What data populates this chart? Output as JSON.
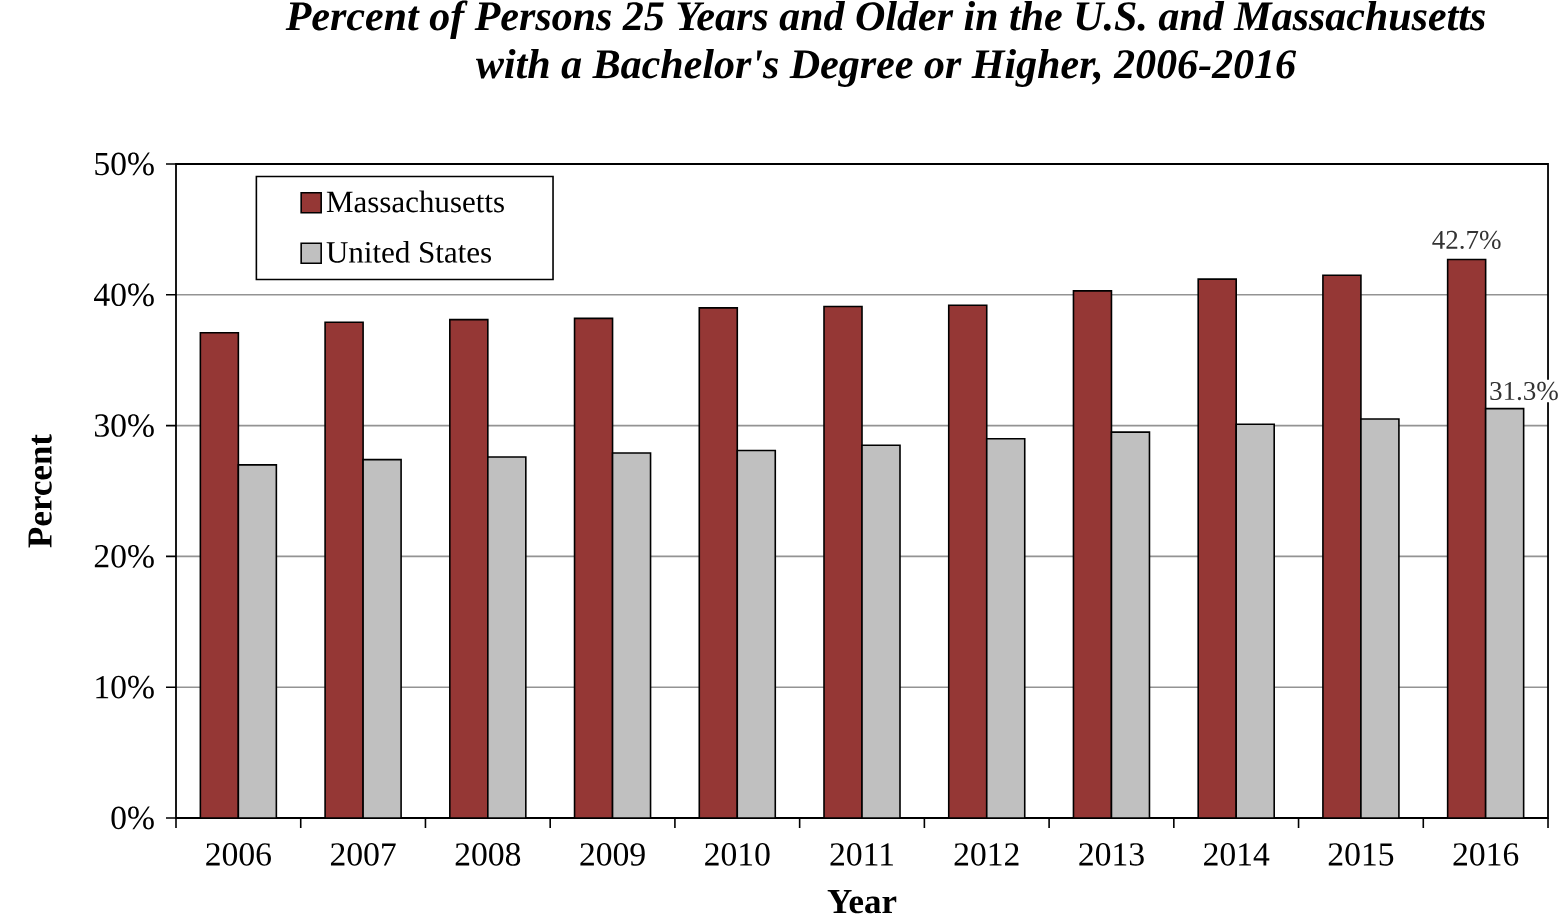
{
  "chart_data": {
    "type": "bar",
    "title": "Percent of Persons 25 Years and Older in the U.S. and Massachusetts with a Bachelor's Degree or Higher, 2006-2016",
    "xlabel": "Year",
    "ylabel": "Percent",
    "categories": [
      "2006",
      "2007",
      "2008",
      "2009",
      "2010",
      "2011",
      "2012",
      "2013",
      "2014",
      "2015",
      "2016"
    ],
    "series": [
      {
        "name": "Massachusetts",
        "color": "#953735",
        "values": [
          37.1,
          37.9,
          38.1,
          38.2,
          39.0,
          39.1,
          39.2,
          40.3,
          41.2,
          41.5,
          42.7
        ],
        "value_labels": [
          null,
          null,
          null,
          null,
          null,
          null,
          null,
          null,
          null,
          null,
          "42.7%"
        ]
      },
      {
        "name": "United States",
        "color": "#c0c0c0",
        "values": [
          27.0,
          27.4,
          27.6,
          27.9,
          28.1,
          28.5,
          29.0,
          29.5,
          30.1,
          30.5,
          31.3
        ],
        "value_labels": [
          null,
          null,
          null,
          null,
          null,
          null,
          null,
          null,
          null,
          null,
          "31.3%"
        ]
      }
    ],
    "ylim": [
      0,
      50
    ],
    "yticks": [
      {
        "value": 0,
        "label": "0%"
      },
      {
        "value": 10,
        "label": "10%"
      },
      {
        "value": 20,
        "label": "20%"
      },
      {
        "value": 30,
        "label": "30%"
      },
      {
        "value": 40,
        "label": "40%"
      },
      {
        "value": 50,
        "label": "50%"
      }
    ],
    "grid": "y",
    "legend": "top left"
  }
}
